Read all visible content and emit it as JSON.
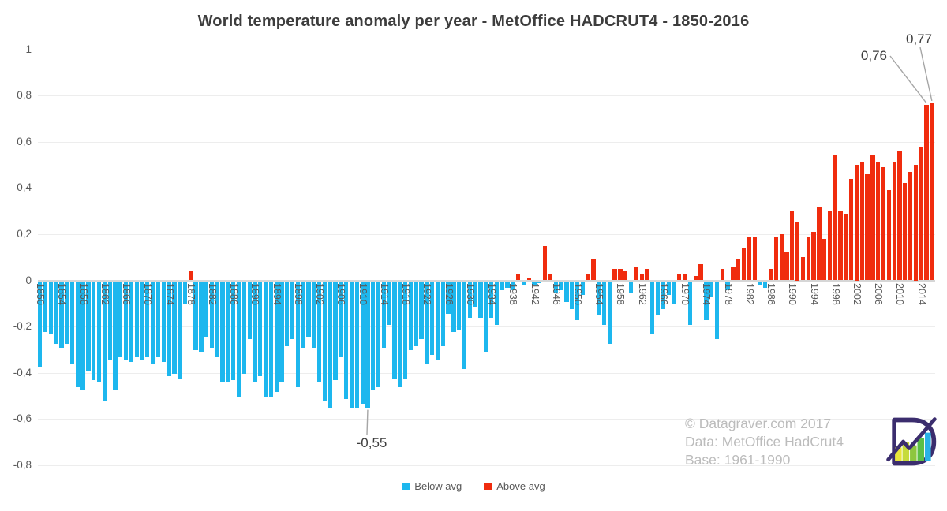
{
  "title": "World temperature anomaly per year - MetOffice HADCRUT4 - 1850-2016",
  "chart_data": {
    "type": "bar",
    "title": "World temperature anomaly per year - MetOffice HADCRUT4 - 1850-2016",
    "xlabel": "",
    "ylabel": "",
    "ylim": [
      -0.8,
      1.0
    ],
    "grid": "horizontal-light",
    "x_range": [
      1850,
      2016
    ],
    "years": [
      1850,
      1851,
      1852,
      1853,
      1854,
      1855,
      1856,
      1857,
      1858,
      1859,
      1860,
      1861,
      1862,
      1863,
      1864,
      1865,
      1866,
      1867,
      1868,
      1869,
      1870,
      1871,
      1872,
      1873,
      1874,
      1875,
      1876,
      1877,
      1878,
      1879,
      1880,
      1881,
      1882,
      1883,
      1884,
      1885,
      1886,
      1887,
      1888,
      1889,
      1890,
      1891,
      1892,
      1893,
      1894,
      1895,
      1896,
      1897,
      1898,
      1899,
      1900,
      1901,
      1902,
      1903,
      1904,
      1905,
      1906,
      1907,
      1908,
      1909,
      1910,
      1911,
      1912,
      1913,
      1914,
      1915,
      1916,
      1917,
      1918,
      1919,
      1920,
      1921,
      1922,
      1923,
      1924,
      1925,
      1926,
      1927,
      1928,
      1929,
      1930,
      1931,
      1932,
      1933,
      1934,
      1935,
      1936,
      1937,
      1938,
      1939,
      1940,
      1941,
      1942,
      1943,
      1944,
      1945,
      1946,
      1947,
      1948,
      1949,
      1950,
      1951,
      1952,
      1953,
      1954,
      1955,
      1956,
      1957,
      1958,
      1959,
      1960,
      1961,
      1962,
      1963,
      1964,
      1965,
      1966,
      1967,
      1968,
      1969,
      1970,
      1971,
      1972,
      1973,
      1974,
      1975,
      1976,
      1977,
      1978,
      1979,
      1980,
      1981,
      1982,
      1983,
      1984,
      1985,
      1986,
      1987,
      1988,
      1989,
      1990,
      1991,
      1992,
      1993,
      1994,
      1995,
      1996,
      1997,
      1998,
      1999,
      2000,
      2001,
      2002,
      2003,
      2004,
      2005,
      2006,
      2007,
      2008,
      2009,
      2010,
      2011,
      2012,
      2013,
      2014,
      2015,
      2016
    ],
    "values": [
      -0.37,
      -0.22,
      -0.23,
      -0.27,
      -0.29,
      -0.27,
      -0.36,
      -0.46,
      -0.47,
      -0.39,
      -0.43,
      -0.44,
      -0.52,
      -0.34,
      -0.47,
      -0.33,
      -0.34,
      -0.35,
      -0.33,
      -0.34,
      -0.33,
      -0.36,
      -0.33,
      -0.35,
      -0.41,
      -0.4,
      -0.42,
      -0.1,
      0.04,
      -0.3,
      -0.31,
      -0.24,
      -0.29,
      -0.33,
      -0.44,
      -0.44,
      -0.43,
      -0.5,
      -0.4,
      -0.25,
      -0.44,
      -0.41,
      -0.5,
      -0.5,
      -0.48,
      -0.44,
      -0.28,
      -0.25,
      -0.46,
      -0.29,
      -0.24,
      -0.29,
      -0.44,
      -0.52,
      -0.55,
      -0.43,
      -0.33,
      -0.51,
      -0.55,
      -0.55,
      -0.53,
      -0.55,
      -0.47,
      -0.46,
      -0.29,
      -0.19,
      -0.42,
      -0.46,
      -0.42,
      -0.3,
      -0.28,
      -0.25,
      -0.36,
      -0.32,
      -0.34,
      -0.28,
      -0.14,
      -0.22,
      -0.21,
      -0.38,
      -0.16,
      -0.11,
      -0.16,
      -0.31,
      -0.16,
      -0.19,
      -0.04,
      -0.03,
      -0.04,
      0.03,
      -0.02,
      0.01,
      -0.02,
      -0.01,
      0.15,
      0.03,
      -0.05,
      -0.04,
      -0.09,
      -0.12,
      -0.17,
      -0.06,
      0.03,
      0.09,
      -0.15,
      -0.19,
      -0.27,
      0.05,
      0.05,
      0.04,
      -0.05,
      0.06,
      0.03,
      0.05,
      -0.23,
      -0.15,
      -0.12,
      -0.06,
      -0.1,
      0.03,
      0.03,
      -0.19,
      0.02,
      0.07,
      -0.17,
      -0.07,
      -0.25,
      0.05,
      -0.04,
      0.06,
      0.09,
      0.14,
      0.19,
      0.19,
      -0.02,
      -0.03,
      0.05,
      0.19,
      0.2,
      0.12,
      0.3,
      0.25,
      0.1,
      0.19,
      0.21,
      0.32,
      0.18,
      0.3,
      0.54,
      0.3,
      0.29,
      0.44,
      0.5,
      0.51,
      0.46,
      0.54,
      0.51,
      0.49,
      0.39,
      0.51,
      0.56,
      0.42,
      0.47,
      0.5,
      0.58,
      0.76,
      0.77
    ],
    "y_ticks": [
      {
        "value": 1.0,
        "label": "1"
      },
      {
        "value": 0.8,
        "label": "0,8"
      },
      {
        "value": 0.6,
        "label": "0,6"
      },
      {
        "value": 0.4,
        "label": "0,4"
      },
      {
        "value": 0.2,
        "label": "0,2"
      },
      {
        "value": 0.0,
        "label": "0"
      },
      {
        "value": -0.2,
        "label": "-0,2"
      },
      {
        "value": -0.4,
        "label": "-0,4"
      },
      {
        "value": -0.6,
        "label": "-0,6"
      },
      {
        "value": -0.8,
        "label": "-0,8"
      }
    ],
    "x_tick_labels": [
      "1850",
      "1854",
      "1858",
      "1862",
      "1866",
      "1870",
      "1874",
      "1878",
      "1882",
      "1886",
      "1890",
      "1894",
      "1898",
      "1902",
      "1906",
      "1910",
      "1914",
      "1918",
      "1922",
      "1926",
      "1930",
      "1934",
      "1938",
      "1942",
      "1946",
      "1950",
      "1954",
      "1958",
      "1962",
      "1966",
      "1970",
      "1974",
      "1978",
      "1982",
      "1986",
      "1990",
      "1994",
      "1998",
      "2002",
      "2006",
      "2010",
      "2014"
    ],
    "colors": {
      "below_avg": "#1db7ee",
      "above_avg": "#f02c0e"
    },
    "annotations": [
      {
        "text": "0,76",
        "year": 2015,
        "value": 0.76
      },
      {
        "text": "0,77",
        "year": 2016,
        "value": 0.77
      },
      {
        "text": "-0,55",
        "year": 1911,
        "value": -0.55
      }
    ],
    "legend": [
      {
        "label": "Below avg",
        "color": "#1db7ee"
      },
      {
        "label": "Above avg",
        "color": "#f02c0e"
      }
    ],
    "legend_position": "bottom-center"
  },
  "watermark": {
    "line1": "© Datagraver.com 2017",
    "line2": "Data: MetOffice HadCrut4",
    "line3": "Base: 1961-1990"
  },
  "logo": {
    "name": "datagraver-logo"
  }
}
